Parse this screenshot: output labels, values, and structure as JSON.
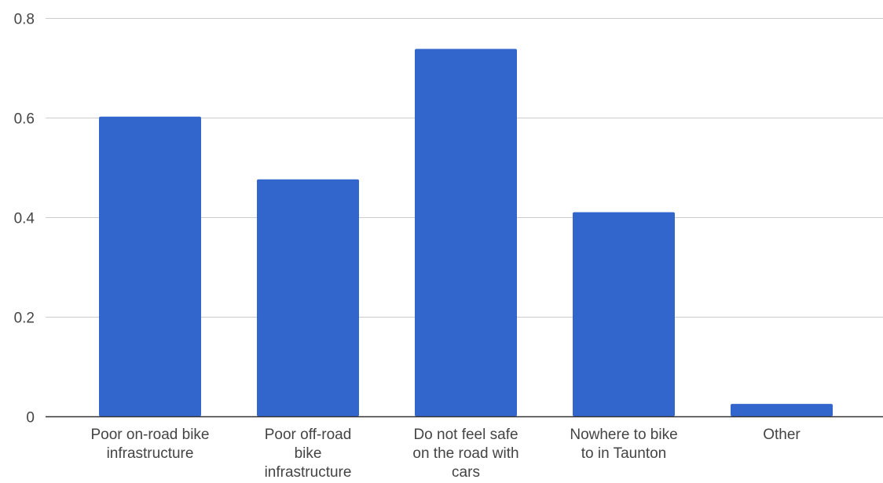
{
  "chart_data": {
    "type": "bar",
    "title": "",
    "xlabel": "",
    "ylabel": "",
    "categories": [
      "Poor on-road bike infrastructure",
      "Poor off-road bike infrastructure",
      "Do not feel safe on the road with cars",
      "Nowhere to bike to in Taunton",
      "Other"
    ],
    "category_label_lines": [
      [
        "Poor on-road bike",
        "infrastructure"
      ],
      [
        "Poor off-road",
        "bike",
        "infrastructure"
      ],
      [
        "Do not feel safe",
        "on the road with",
        "cars"
      ],
      [
        "Nowhere to bike",
        "to in Taunton"
      ],
      [
        "Other"
      ]
    ],
    "values": [
      0.602,
      0.476,
      0.738,
      0.41,
      0.025
    ],
    "ylim": [
      0,
      0.8
    ],
    "yticks": [
      0,
      0.2,
      0.4,
      0.6,
      0.8
    ],
    "ytick_labels": [
      "0",
      "0.2",
      "0.4",
      "0.6",
      "0.8"
    ],
    "grid": true,
    "legend": "none",
    "colors": {
      "bar": "#3366cc",
      "grid": "#cccccc",
      "axis": "#333333",
      "text": "#444444"
    }
  }
}
